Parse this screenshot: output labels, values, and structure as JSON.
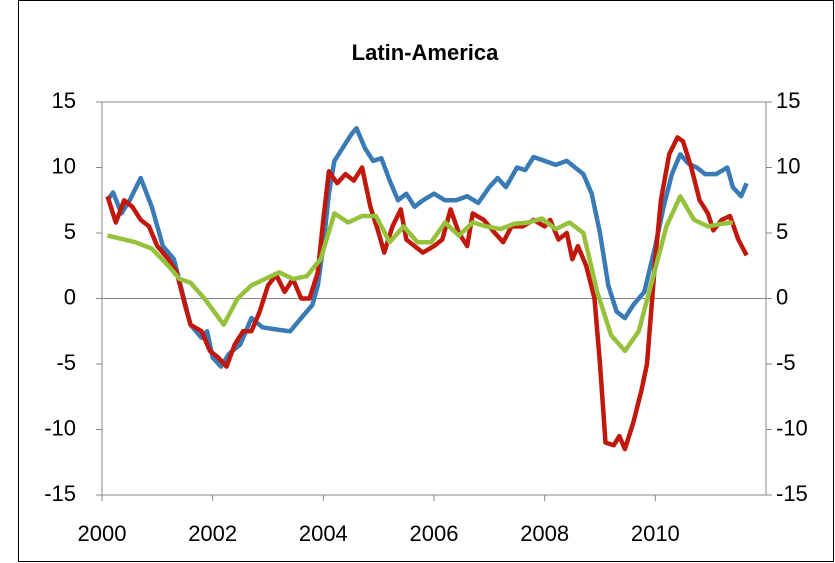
{
  "chart_data": {
    "type": "line",
    "title": "Latin-America",
    "xlim": [
      2000,
      2012
    ],
    "xticks": [
      2000,
      2002,
      2004,
      2006,
      2008,
      2010
    ],
    "ylim": [
      -15,
      15
    ],
    "yticks": [
      -15,
      -10,
      -5,
      0,
      5,
      10,
      15
    ],
    "y2lim": [
      -15,
      15
    ],
    "y2ticks": [
      -15,
      -10,
      -5,
      0,
      5,
      10,
      15
    ],
    "series": [
      {
        "color": "#3a7ab5",
        "x": [
          2000.1,
          2000.2,
          2000.35,
          2000.5,
          2000.7,
          2000.9,
          2001.1,
          2001.3,
          2001.45,
          2001.6,
          2001.8,
          2001.9,
          2002.0,
          2002.15,
          2002.3,
          2002.5,
          2002.7,
          2002.9,
          2003.2,
          2003.4,
          2003.6,
          2003.8,
          2003.9,
          2004.0,
          2004.1,
          2004.2,
          2004.35,
          2004.5,
          2004.6,
          2004.75,
          2004.9,
          2005.05,
          2005.2,
          2005.35,
          2005.5,
          2005.65,
          2005.8,
          2006.0,
          2006.2,
          2006.4,
          2006.6,
          2006.8,
          2007.0,
          2007.15,
          2007.3,
          2007.5,
          2007.65,
          2007.8,
          2008.0,
          2008.2,
          2008.4,
          2008.55,
          2008.7,
          2008.85,
          2009.0,
          2009.15,
          2009.3,
          2009.45,
          2009.6,
          2009.8,
          2010.0,
          2010.15,
          2010.3,
          2010.45,
          2010.6,
          2010.75,
          2010.9,
          2011.1,
          2011.3,
          2011.4,
          2011.55,
          2011.65
        ],
        "values": [
          7.5,
          8.1,
          6.5,
          7.5,
          9.2,
          7,
          4,
          3,
          0.5,
          -2,
          -3,
          -2.5,
          -4.5,
          -5.2,
          -4.2,
          -3.5,
          -1.5,
          -2.2,
          -2.4,
          -2.5,
          -1.5,
          -0.5,
          1,
          4,
          8,
          10.5,
          11.5,
          12.5,
          13,
          11.5,
          10.5,
          10.7,
          9,
          7.5,
          8,
          7,
          7.5,
          8,
          7.5,
          7.5,
          7.8,
          7.3,
          8.5,
          9.2,
          8.5,
          10,
          9.8,
          10.8,
          10.5,
          10.2,
          10.5,
          10,
          9.5,
          8,
          5,
          1,
          -1,
          -1.5,
          -0.5,
          0.5,
          4,
          7,
          9.5,
          11,
          10.3,
          10,
          9.5,
          9.5,
          10,
          8.5,
          7.8,
          8.8
        ]
      },
      {
        "color": "#c0180c",
        "x": [
          2000.1,
          2000.25,
          2000.4,
          2000.55,
          2000.7,
          2000.85,
          2001.0,
          2001.2,
          2001.35,
          2001.5,
          2001.6,
          2001.8,
          2001.95,
          2002.1,
          2002.25,
          2002.4,
          2002.55,
          2002.7,
          2002.85,
          2003.0,
          2003.15,
          2003.3,
          2003.45,
          2003.6,
          2003.75,
          2003.9,
          2004.0,
          2004.1,
          2004.25,
          2004.4,
          2004.55,
          2004.7,
          2004.85,
          2005.0,
          2005.1,
          2005.25,
          2005.4,
          2005.5,
          2005.65,
          2005.8,
          2006.0,
          2006.15,
          2006.3,
          2006.45,
          2006.6,
          2006.7,
          2006.9,
          2007.1,
          2007.25,
          2007.4,
          2007.6,
          2007.8,
          2008.0,
          2008.1,
          2008.25,
          2008.4,
          2008.5,
          2008.6,
          2008.75,
          2008.9,
          2009.0,
          2009.1,
          2009.25,
          2009.35,
          2009.45,
          2009.6,
          2009.75,
          2009.85,
          2010.0,
          2010.1,
          2010.25,
          2010.4,
          2010.5,
          2010.65,
          2010.8,
          2010.95,
          2011.05,
          2011.2,
          2011.35,
          2011.5,
          2011.65
        ],
        "values": [
          7.8,
          5.8,
          7.5,
          7,
          6,
          5.5,
          4,
          3,
          2,
          -0.5,
          -2,
          -2.5,
          -4,
          -4.5,
          -5.2,
          -3.5,
          -2.5,
          -2.5,
          -1,
          1,
          1.8,
          0.5,
          1.5,
          0,
          0,
          2,
          6,
          9.7,
          8.8,
          9.5,
          9,
          10,
          7,
          5,
          3.5,
          5.5,
          6.8,
          4.5,
          4,
          3.5,
          4,
          4.5,
          6.8,
          5,
          4,
          6.5,
          6,
          5,
          4.3,
          5.5,
          5.5,
          6,
          5.5,
          6,
          4.5,
          5,
          3,
          4,
          2.5,
          0,
          -5,
          -11,
          -11.2,
          -10.5,
          -11.5,
          -9.5,
          -7,
          -5,
          3,
          7.5,
          11,
          12.3,
          12,
          10,
          7.5,
          6.5,
          5.2,
          6,
          6.3,
          4.5,
          3.3
        ]
      },
      {
        "color": "#95c13c",
        "x": [
          2000.1,
          2000.6,
          2000.9,
          2001.2,
          2001.4,
          2001.6,
          2001.85,
          2002.2,
          2002.45,
          2002.7,
          2002.95,
          2003.2,
          2003.45,
          2003.7,
          2003.95,
          2004.2,
          2004.45,
          2004.7,
          2004.95,
          2005.2,
          2005.45,
          2005.7,
          2005.95,
          2006.2,
          2006.45,
          2006.7,
          2006.95,
          2007.2,
          2007.45,
          2007.7,
          2007.95,
          2008.2,
          2008.45,
          2008.7,
          2008.95,
          2009.2,
          2009.45,
          2009.7,
          2009.95,
          2010.2,
          2010.45,
          2010.7,
          2010.95,
          2011.2,
          2011.4
        ],
        "values": [
          4.8,
          4.3,
          3.8,
          2.5,
          1.5,
          1.2,
          0,
          -2,
          0,
          1,
          1.5,
          2,
          1.5,
          1.7,
          3,
          6.5,
          5.8,
          6.3,
          6.3,
          4.3,
          5.5,
          4.3,
          4.3,
          5.8,
          4.8,
          5.8,
          5.5,
          5.3,
          5.7,
          5.8,
          6.1,
          5.3,
          5.8,
          5,
          0.5,
          -2.8,
          -4,
          -2.5,
          1.5,
          5.5,
          7.8,
          6,
          5.5,
          5.7,
          5.8
        ]
      }
    ]
  }
}
